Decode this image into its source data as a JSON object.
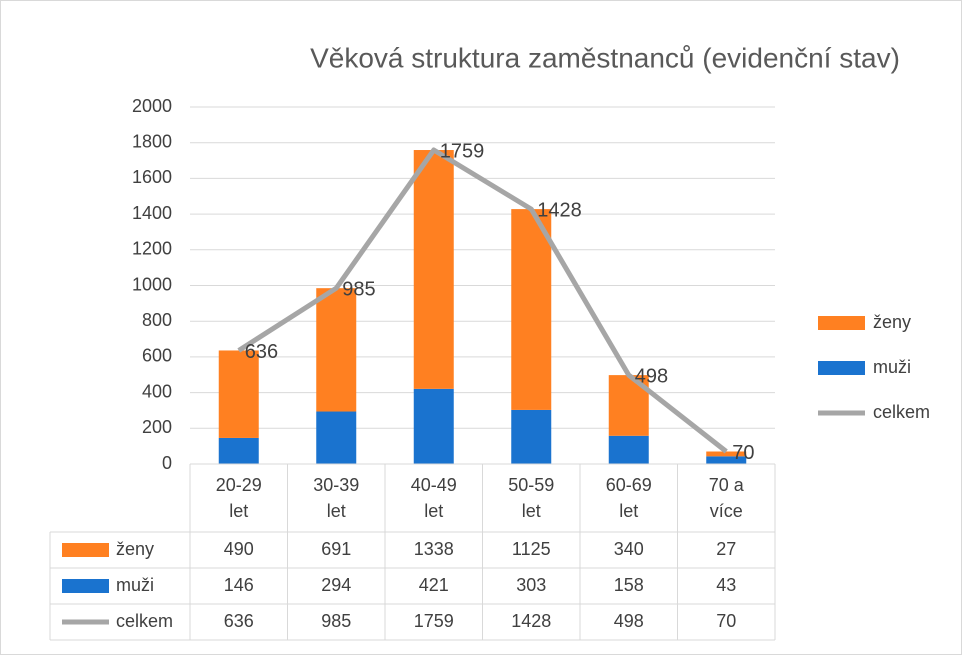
{
  "chart_data": {
    "type": "bar",
    "title": "Věková struktura zaměstnanců (evidenční stav)",
    "categories": [
      "20-29 let",
      "30-39 let",
      "40-49 let",
      "50-59 let",
      "60-69 let",
      "70 a více"
    ],
    "series": [
      {
        "name": "ženy",
        "type": "bar",
        "color": "#ff8021",
        "values": [
          490,
          691,
          1338,
          1125,
          340,
          27
        ]
      },
      {
        "name": "muži",
        "type": "bar",
        "color": "#1a73cf",
        "values": [
          146,
          294,
          421,
          303,
          158,
          43
        ]
      },
      {
        "name": "celkem",
        "type": "line",
        "color": "#a6a6a6",
        "values": [
          636,
          985,
          1759,
          1428,
          498,
          70
        ]
      }
    ],
    "stacked": true,
    "ylim": [
      0,
      2000
    ],
    "yticks": [
      0,
      200,
      400,
      600,
      800,
      1000,
      1200,
      1400,
      1600,
      1800,
      2000
    ],
    "grid": true,
    "legend": "right",
    "data_table": true
  }
}
